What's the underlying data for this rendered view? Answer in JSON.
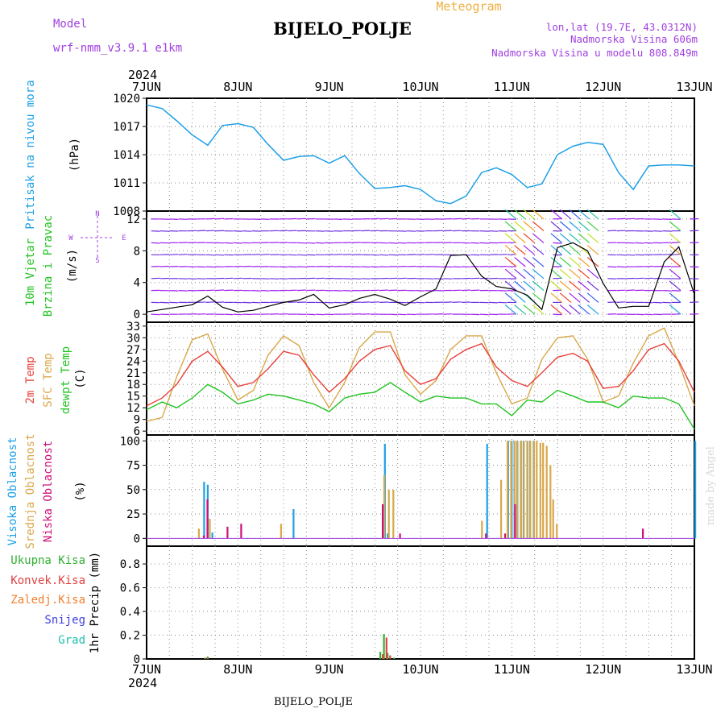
{
  "header": {
    "title": "BIJELO_POLJE",
    "model_label": "Model",
    "model_name": "wrf-nmm_v3.9.1 e1km",
    "meteogram_label": "Meteogram",
    "location": "lon,lat (19.7E, 43.0312N)",
    "elevation": "Nadmorska Visina 606m",
    "model_elevation": "Nadmorska Visina u modelu 808.849m",
    "footer_title": "BIJELO_POLJE",
    "watermark": "made by Angel"
  },
  "time_axis": {
    "year": "2024",
    "labels": [
      "7JUN",
      "8JUN",
      "9JUN",
      "10JUN",
      "11JUN",
      "12JUN",
      "13JUN"
    ]
  },
  "panels": {
    "pressure": {
      "label": "Pritisak na nivou mora",
      "unit": "(hPa)",
      "ticks": [
        "1020",
        "1017",
        "1014",
        "1011",
        "1008"
      ]
    },
    "wind": {
      "label1": "10m Vjetar",
      "label2": "Brzina i Pravac",
      "unit": "(m/s)",
      "ticks": [
        "12",
        "8",
        "4",
        "0"
      ],
      "compass": {
        "n": "N",
        "w": "W",
        "e": "E",
        "s": "S"
      }
    },
    "temp": {
      "label1": "2m Temp",
      "label2": "SFC Temp",
      "label3": "dewpt Temp",
      "unit": "(C)",
      "ticks": [
        "33",
        "30",
        "27",
        "24",
        "21",
        "18",
        "15",
        "12",
        "9",
        "6"
      ]
    },
    "cloud": {
      "label1": "Visoka Oblacnost",
      "label2": "Srednja Oblacnost",
      "label3": "Niska Oblacnost",
      "unit": "(%)",
      "ticks": [
        "100",
        "75",
        "50",
        "25",
        "0"
      ]
    },
    "precip": {
      "unit": "1hr Precip (mm)",
      "legend": [
        "Ukupna Kisa",
        "Konvek.Kisa",
        "Zaledj.Kisa",
        "Snijeg",
        "Grad"
      ],
      "ticks": [
        "0.8",
        "0.6",
        "0.4",
        "0.2",
        "0"
      ]
    }
  },
  "colors": {
    "pressure": "#1ea0e6",
    "wind_speed": "#000000",
    "temp2m": "#e8403c",
    "sfc_temp": "#d8a84a",
    "dewpt": "#22c322",
    "cloud_high": "#1ea0e6",
    "cloud_mid": "#d8a84a",
    "cloud_low": "#d0107a",
    "precip_total": "#30b030",
    "precip_conv": "#e04040",
    "precip_frozen": "#f08030",
    "snow": "#4040e0",
    "hail": "#20c0b0",
    "purple_text": "#a040e0",
    "orange_text": "#f0b040"
  },
  "chart_data": [
    {
      "type": "line",
      "title": "Pritisak na nivou mora",
      "ylabel": "(hPa)",
      "ylim": [
        1008,
        1020
      ],
      "x_days": [
        0,
        0.17,
        0.33,
        0.5,
        0.67,
        0.83,
        1.0,
        1.17,
        1.33,
        1.5,
        1.67,
        1.83,
        2.0,
        2.17,
        2.33,
        2.5,
        2.67,
        2.83,
        3.0,
        3.17,
        3.33,
        3.5,
        3.67,
        3.83,
        4.0,
        4.17,
        4.33,
        4.5,
        4.67,
        4.83,
        5.0,
        5.17,
        5.33,
        5.5,
        5.67,
        5.83,
        6.0
      ],
      "series": [
        {
          "name": "Pritisak na nivou mora",
          "values": [
            1019.3,
            1018.9,
            1017.6,
            1016.1,
            1015.0,
            1017.1,
            1017.3,
            1016.9,
            1015.1,
            1013.4,
            1013.8,
            1013.9,
            1013.1,
            1013.9,
            1012.0,
            1010.4,
            1010.5,
            1010.7,
            1010.3,
            1009.1,
            1008.8,
            1009.6,
            1012.1,
            1012.6,
            1011.9,
            1010.5,
            1010.9,
            1014.0,
            1014.9,
            1015.3,
            1015.1,
            1012.1,
            1010.3,
            1012.8,
            1012.9,
            1012.9,
            1012.8
          ]
        }
      ]
    },
    {
      "type": "line",
      "title": "10m Vjetar Brzina i Pravac",
      "ylabel": "(m/s)",
      "ylim": [
        -1,
        13
      ],
      "x_days": [
        0,
        0.17,
        0.33,
        0.5,
        0.67,
        0.83,
        1.0,
        1.17,
        1.33,
        1.5,
        1.67,
        1.83,
        2.0,
        2.17,
        2.33,
        2.5,
        2.67,
        2.83,
        3.0,
        3.17,
        3.33,
        3.5,
        3.67,
        3.83,
        4.0,
        4.17,
        4.33,
        4.5,
        4.67,
        4.83,
        5.0,
        5.17,
        5.33,
        5.5,
        5.67,
        5.83,
        6.0
      ],
      "series": [
        {
          "name": "10m Vjetar",
          "values": [
            0.3,
            0.6,
            0.9,
            1.2,
            2.3,
            0.9,
            0.3,
            0.5,
            1.0,
            1.5,
            1.8,
            2.5,
            0.8,
            1.2,
            2.0,
            2.5,
            1.9,
            1.1,
            2.2,
            3.2,
            7.4,
            7.5,
            4.8,
            3.5,
            3.2,
            2.4,
            0.6,
            8.4,
            9.0,
            8.0,
            3.9,
            0.8,
            1.0,
            1.0,
            6.6,
            8.5,
            2.5
          ]
        }
      ]
    },
    {
      "type": "line",
      "title": "2m Temp, SFC Temp, dewpt Temp",
      "ylabel": "(C)",
      "ylim": [
        5,
        34
      ],
      "x_days": [
        0,
        0.17,
        0.33,
        0.5,
        0.67,
        0.83,
        1.0,
        1.17,
        1.33,
        1.5,
        1.67,
        1.83,
        2.0,
        2.17,
        2.33,
        2.5,
        2.67,
        2.83,
        3.0,
        3.17,
        3.33,
        3.5,
        3.67,
        3.83,
        4.0,
        4.17,
        4.33,
        4.5,
        4.67,
        4.83,
        5.0,
        5.17,
        5.33,
        5.5,
        5.67,
        5.83,
        6.0
      ],
      "series": [
        {
          "name": "2m Temp",
          "values": [
            12.5,
            14.5,
            18.0,
            24.0,
            26.5,
            22.5,
            17.5,
            18.5,
            22.0,
            26.5,
            25.5,
            20.5,
            16.0,
            19.5,
            24.0,
            27.0,
            28.0,
            21.5,
            18.0,
            19.5,
            24.5,
            27.0,
            28.5,
            22.5,
            19.0,
            17.5,
            21.0,
            25.0,
            26.0,
            24.0,
            17.0,
            17.5,
            21.5,
            27.0,
            28.5,
            24.0,
            16.0
          ]
        },
        {
          "name": "SFC Temp",
          "values": [
            8.5,
            9.5,
            20.0,
            29.5,
            31.0,
            22.0,
            14.0,
            16.5,
            25.5,
            30.5,
            28.0,
            18.5,
            12.0,
            18.5,
            27.5,
            31.5,
            31.5,
            20.5,
            15.5,
            19.0,
            27.0,
            30.5,
            30.5,
            21.0,
            13.0,
            14.5,
            24.5,
            30.0,
            30.5,
            24.5,
            13.5,
            15.0,
            23.5,
            30.5,
            32.5,
            23.5,
            12.5
          ]
        },
        {
          "name": "dewpt Temp",
          "values": [
            11.5,
            13.5,
            12.0,
            14.5,
            18.0,
            16.0,
            13.0,
            14.0,
            15.5,
            15.0,
            14.0,
            13.0,
            11.0,
            14.5,
            15.5,
            16.0,
            18.5,
            16.0,
            13.5,
            15.0,
            14.5,
            14.5,
            13.0,
            13.0,
            10.0,
            14.0,
            13.5,
            16.5,
            15.0,
            13.5,
            13.5,
            12.0,
            15.0,
            14.5,
            14.5,
            13.0,
            6.5
          ]
        }
      ]
    },
    {
      "type": "bar",
      "title": "Visoka / Srednja / Niska Oblacnost",
      "ylabel": "(%)",
      "ylim": [
        0,
        100
      ],
      "series": [
        {
          "name": "Visoka Oblacnost",
          "x_days": [
            0.62,
            0.66,
            0.71,
            1.6,
            2.6,
            2.63,
            3.72,
            3.95,
            3.99,
            4.02,
            4.05,
            4.09,
            4.12,
            4.16,
            4.19,
            4.23,
            6.0
          ],
          "values": [
            58,
            55,
            6,
            30,
            97,
            5,
            97,
            100,
            100,
            100,
            100,
            100,
            100,
            100,
            100,
            100,
            100
          ]
        },
        {
          "name": "Srednja Oblacnost",
          "x_days": [
            0.55,
            0.67,
            1.45,
            2.58,
            2.63,
            2.68,
            3.65,
            3.86,
            3.93,
            3.97,
            4.01,
            4.04,
            4.08,
            4.11,
            4.15,
            4.18,
            4.22,
            4.25,
            4.29,
            4.32,
            4.36,
            4.4,
            4.43,
            4.47
          ],
          "values": [
            10,
            20,
            15,
            65,
            50,
            50,
            18,
            60,
            100,
            100,
            100,
            100,
            100,
            100,
            100,
            100,
            100,
            100,
            98,
            98,
            95,
            75,
            40,
            15
          ]
        },
        {
          "name": "Niska Oblacnost",
          "x_days": [
            0.59,
            0.63,
            0.85,
            1.0,
            2.55,
            2.74,
            3.68,
            3.89,
            4.0,
            5.4
          ],
          "values": [
            3,
            40,
            12,
            15,
            35,
            5,
            5,
            5,
            35,
            10
          ]
        }
      ]
    },
    {
      "type": "bar",
      "title": "1hr Precip",
      "ylabel": "1hr Precip (mm)",
      "ylim": [
        0,
        0.95
      ],
      "series": [
        {
          "name": "Ukupna Kisa",
          "x_days": [
            0.63,
            0.66,
            2.55,
            2.59,
            2.63,
            2.7
          ],
          "values": [
            0.01,
            0.02,
            0.06,
            0.21,
            0.05,
            0.01
          ]
        },
        {
          "name": "Konvek.Kisa",
          "x_days": [
            0.64,
            2.56,
            2.6,
            2.64
          ],
          "values": [
            0.01,
            0.04,
            0.18,
            0.03
          ]
        },
        {
          "name": "Zaledj.Kisa",
          "x_days": [],
          "values": []
        },
        {
          "name": "Snijeg",
          "x_days": [],
          "values": []
        },
        {
          "name": "Grad",
          "x_days": [],
          "values": []
        }
      ]
    }
  ]
}
